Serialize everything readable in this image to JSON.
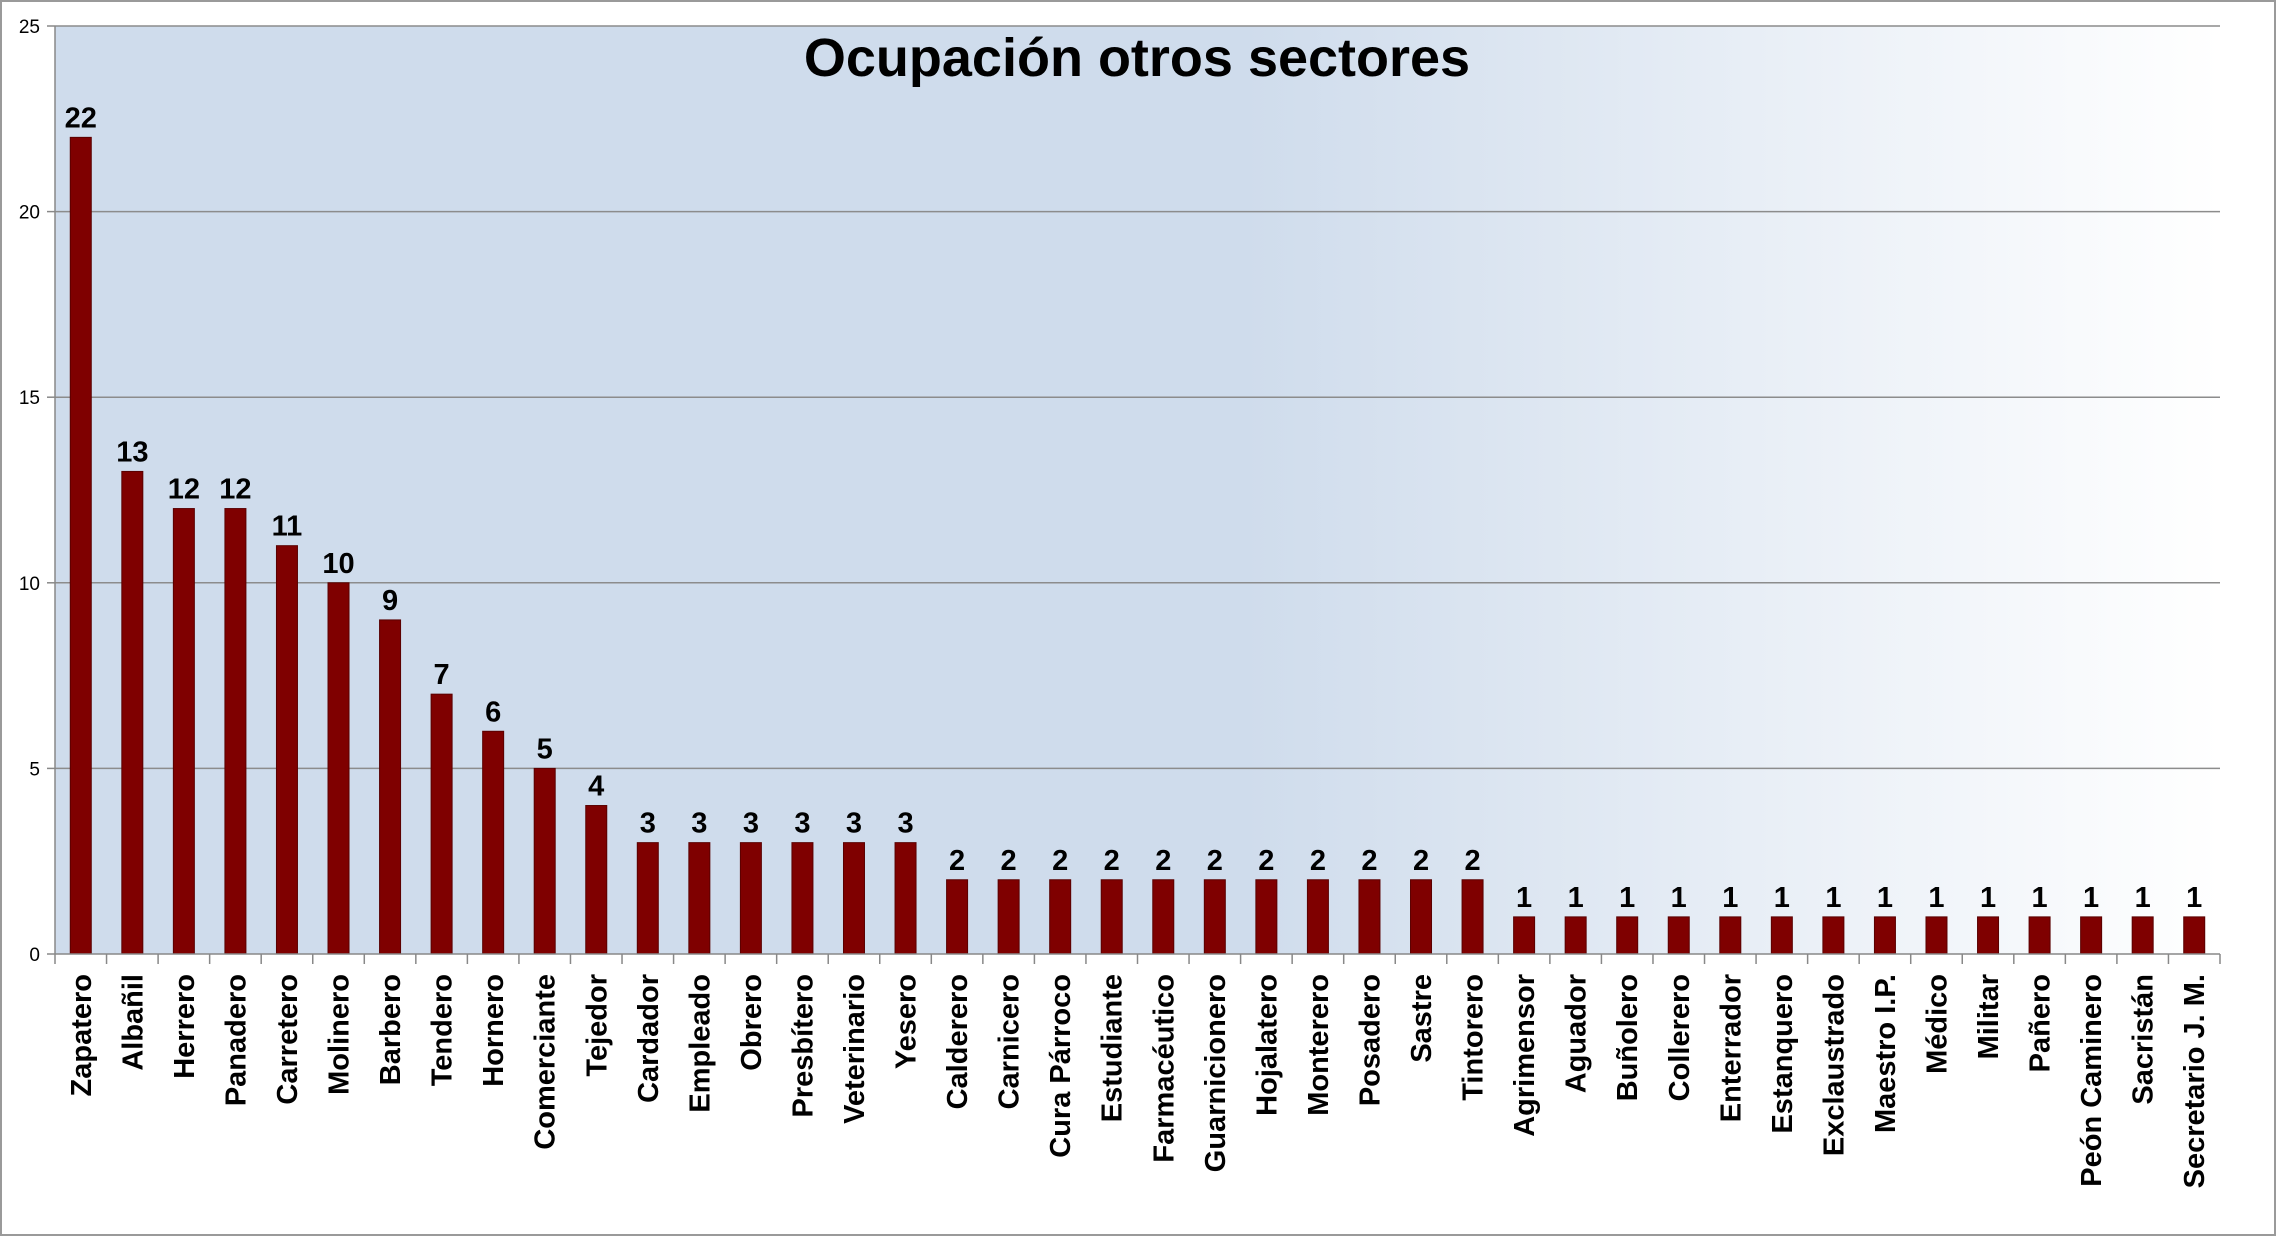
{
  "chart_data": {
    "type": "bar",
    "title": "Ocupación otros sectores",
    "xlabel": "",
    "ylabel": "",
    "ylim": [
      0,
      25
    ],
    "yticks": [
      0,
      5,
      10,
      15,
      20,
      25
    ],
    "grid": true,
    "legend": "none",
    "categories": [
      "Zapatero",
      "Albañil",
      "Herrero",
      "Panadero",
      "Carretero",
      "Molinero",
      "Barbero",
      "Tendero",
      "Hornero",
      "Comerciante",
      "Tejedor",
      "Cardador",
      "Empleado",
      "Obrero",
      "Presbítero",
      "Veterinario",
      "Yesero",
      "Calderero",
      "Carnicero",
      "Cura Párroco",
      "Estudiante",
      "Farmacéutico",
      "Guarnicionero",
      "Hojalatero",
      "Monterero",
      "Posadero",
      "Sastre",
      "Tintorero",
      "Agrimensor",
      "Aguador",
      "Buñolero",
      "Collerero",
      "Enterrador",
      "Estanquero",
      "Exclaustrado",
      "Maestro I.P.",
      "Médico",
      "Militar",
      "Pañero",
      "Peón Caminero",
      "Sacristán",
      "Secretario J. M."
    ],
    "values": [
      22,
      13,
      12,
      12,
      11,
      10,
      9,
      7,
      6,
      5,
      4,
      3,
      3,
      3,
      3,
      3,
      3,
      2,
      2,
      2,
      2,
      2,
      2,
      2,
      2,
      2,
      2,
      2,
      1,
      1,
      1,
      1,
      1,
      1,
      1,
      1,
      1,
      1,
      1,
      1,
      1,
      1
    ],
    "colors": {
      "bar": "#7f0000",
      "bar_edge": "#5a0000",
      "grid": "#8c8c8c",
      "background_left": "#cfdcec",
      "background_right": "#ffffff",
      "axis": "#888888"
    }
  }
}
